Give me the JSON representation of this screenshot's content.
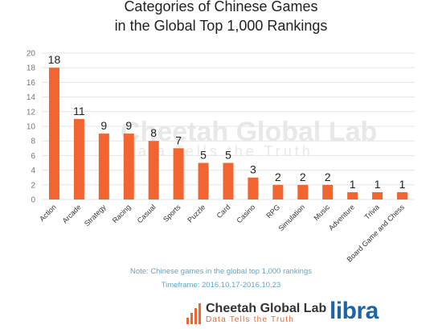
{
  "chart_data": {
    "type": "bar",
    "title_line1": "Categories of Chinese Games",
    "title_line2": "in the Global Top 1,000 Rankings",
    "categories": [
      "Action",
      "Arcade",
      "Strategy",
      "Racing",
      "Casual",
      "Sports",
      "Puzzle",
      "Card",
      "Casino",
      "RPG",
      "Simulation",
      "Music",
      "Adventure",
      "Trivia",
      "Board Game and Chess"
    ],
    "values": [
      18,
      11,
      9,
      9,
      8,
      7,
      5,
      5,
      3,
      2,
      2,
      2,
      1,
      1,
      1
    ],
    "yticks": [
      0,
      2,
      4,
      6,
      8,
      10,
      12,
      14,
      16,
      18,
      20
    ],
    "ylim": [
      0,
      20
    ],
    "grid": true,
    "bar_color": "#f26531"
  },
  "notes": {
    "line1": "Note: Chinese games in the global top 1,000 rankings",
    "line2": "Timeframe: 2016.10.17-2016.10.23"
  },
  "watermark": {
    "brand": "Cheetah Global Lab",
    "tagline": "Data Tells the Truth"
  },
  "footer": {
    "brand": "Cheetah Global Lab",
    "tagline": "Data Tells the Truth",
    "partner": "libra"
  }
}
